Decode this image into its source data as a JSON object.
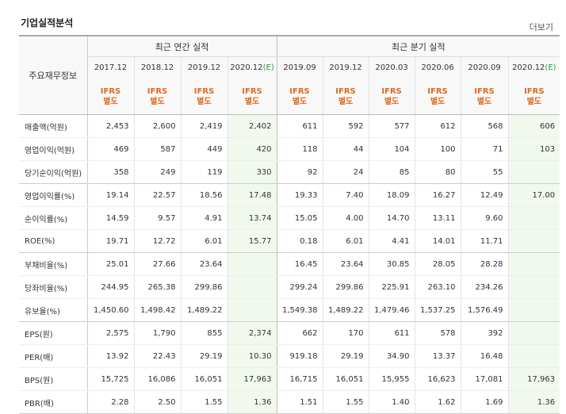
{
  "title": "기업실적분석",
  "more": "더보기",
  "table": {
    "label_header": "주요재무정보",
    "group_annual": "최근 연간 실적",
    "group_quarter": "최근 분기 실적",
    "periods": [
      {
        "label": "2017.12",
        "est": ""
      },
      {
        "label": "2018.12",
        "est": ""
      },
      {
        "label": "2019.12",
        "est": ""
      },
      {
        "label": "2020.12",
        "est": "(E)"
      },
      {
        "label": "2019.09",
        "est": ""
      },
      {
        "label": "2019.12",
        "est": ""
      },
      {
        "label": "2020.03",
        "est": ""
      },
      {
        "label": "2020.06",
        "est": ""
      },
      {
        "label": "2020.09",
        "est": ""
      },
      {
        "label": "2020.12",
        "est": "(E)"
      }
    ],
    "std_top": "IFRS",
    "std_bottom": "별도",
    "rows": [
      {
        "label": "매출액(억원)",
        "values": [
          "2,453",
          "2,600",
          "2,419",
          "2,402",
          "611",
          "592",
          "577",
          "612",
          "568",
          "606"
        ]
      },
      {
        "label": "영업이익(억원)",
        "values": [
          "469",
          "587",
          "449",
          "420",
          "118",
          "44",
          "104",
          "100",
          "71",
          "103"
        ]
      },
      {
        "label": "당기순이익(억원)",
        "values": [
          "358",
          "249",
          "119",
          "330",
          "92",
          "24",
          "85",
          "80",
          "55",
          ""
        ]
      },
      {
        "label": "영업이익률(%)",
        "values": [
          "19.14",
          "22.57",
          "18.56",
          "17.48",
          "19.33",
          "7.40",
          "18.09",
          "16.27",
          "12.49",
          "17.00"
        ]
      },
      {
        "label": "순이익률(%)",
        "values": [
          "14.59",
          "9.57",
          "4.91",
          "13.74",
          "15.05",
          "4.00",
          "14.70",
          "13.11",
          "9.60",
          ""
        ]
      },
      {
        "label": "ROE(%)",
        "values": [
          "19.71",
          "12.72",
          "6.01",
          "15.77",
          "0.18",
          "6.01",
          "4.41",
          "14.01",
          "11.71",
          ""
        ]
      },
      {
        "label": "부채비율(%)",
        "values": [
          "25.01",
          "27.66",
          "23.64",
          "",
          "16.45",
          "23.64",
          "30.85",
          "28.05",
          "28.28",
          ""
        ]
      },
      {
        "label": "당좌비율(%)",
        "values": [
          "244.95",
          "265.38",
          "299.86",
          "",
          "299.24",
          "299.86",
          "225.91",
          "263.10",
          "234.26",
          ""
        ]
      },
      {
        "label": "유보율(%)",
        "values": [
          "1,450.60",
          "1,498.42",
          "1,489.22",
          "",
          "1,549.38",
          "1,489.22",
          "1,479.46",
          "1,537.25",
          "1,576.49",
          ""
        ]
      },
      {
        "label": "EPS(원)",
        "values": [
          "2,575",
          "1,790",
          "855",
          "2,374",
          "662",
          "170",
          "611",
          "578",
          "392",
          ""
        ]
      },
      {
        "label": "PER(배)",
        "values": [
          "13.92",
          "22.43",
          "29.19",
          "10.30",
          "919.18",
          "29.19",
          "34.90",
          "13.37",
          "16.48",
          ""
        ]
      },
      {
        "label": "BPS(원)",
        "values": [
          "15,725",
          "16,086",
          "16,051",
          "17,963",
          "16,715",
          "16,051",
          "15,955",
          "16,623",
          "17,081",
          "17,963"
        ]
      },
      {
        "label": "PBR(배)",
        "values": [
          "2.28",
          "2.50",
          "1.55",
          "1.36",
          "1.51",
          "1.55",
          "1.40",
          "1.62",
          "1.69",
          "1.36"
        ]
      }
    ]
  }
}
